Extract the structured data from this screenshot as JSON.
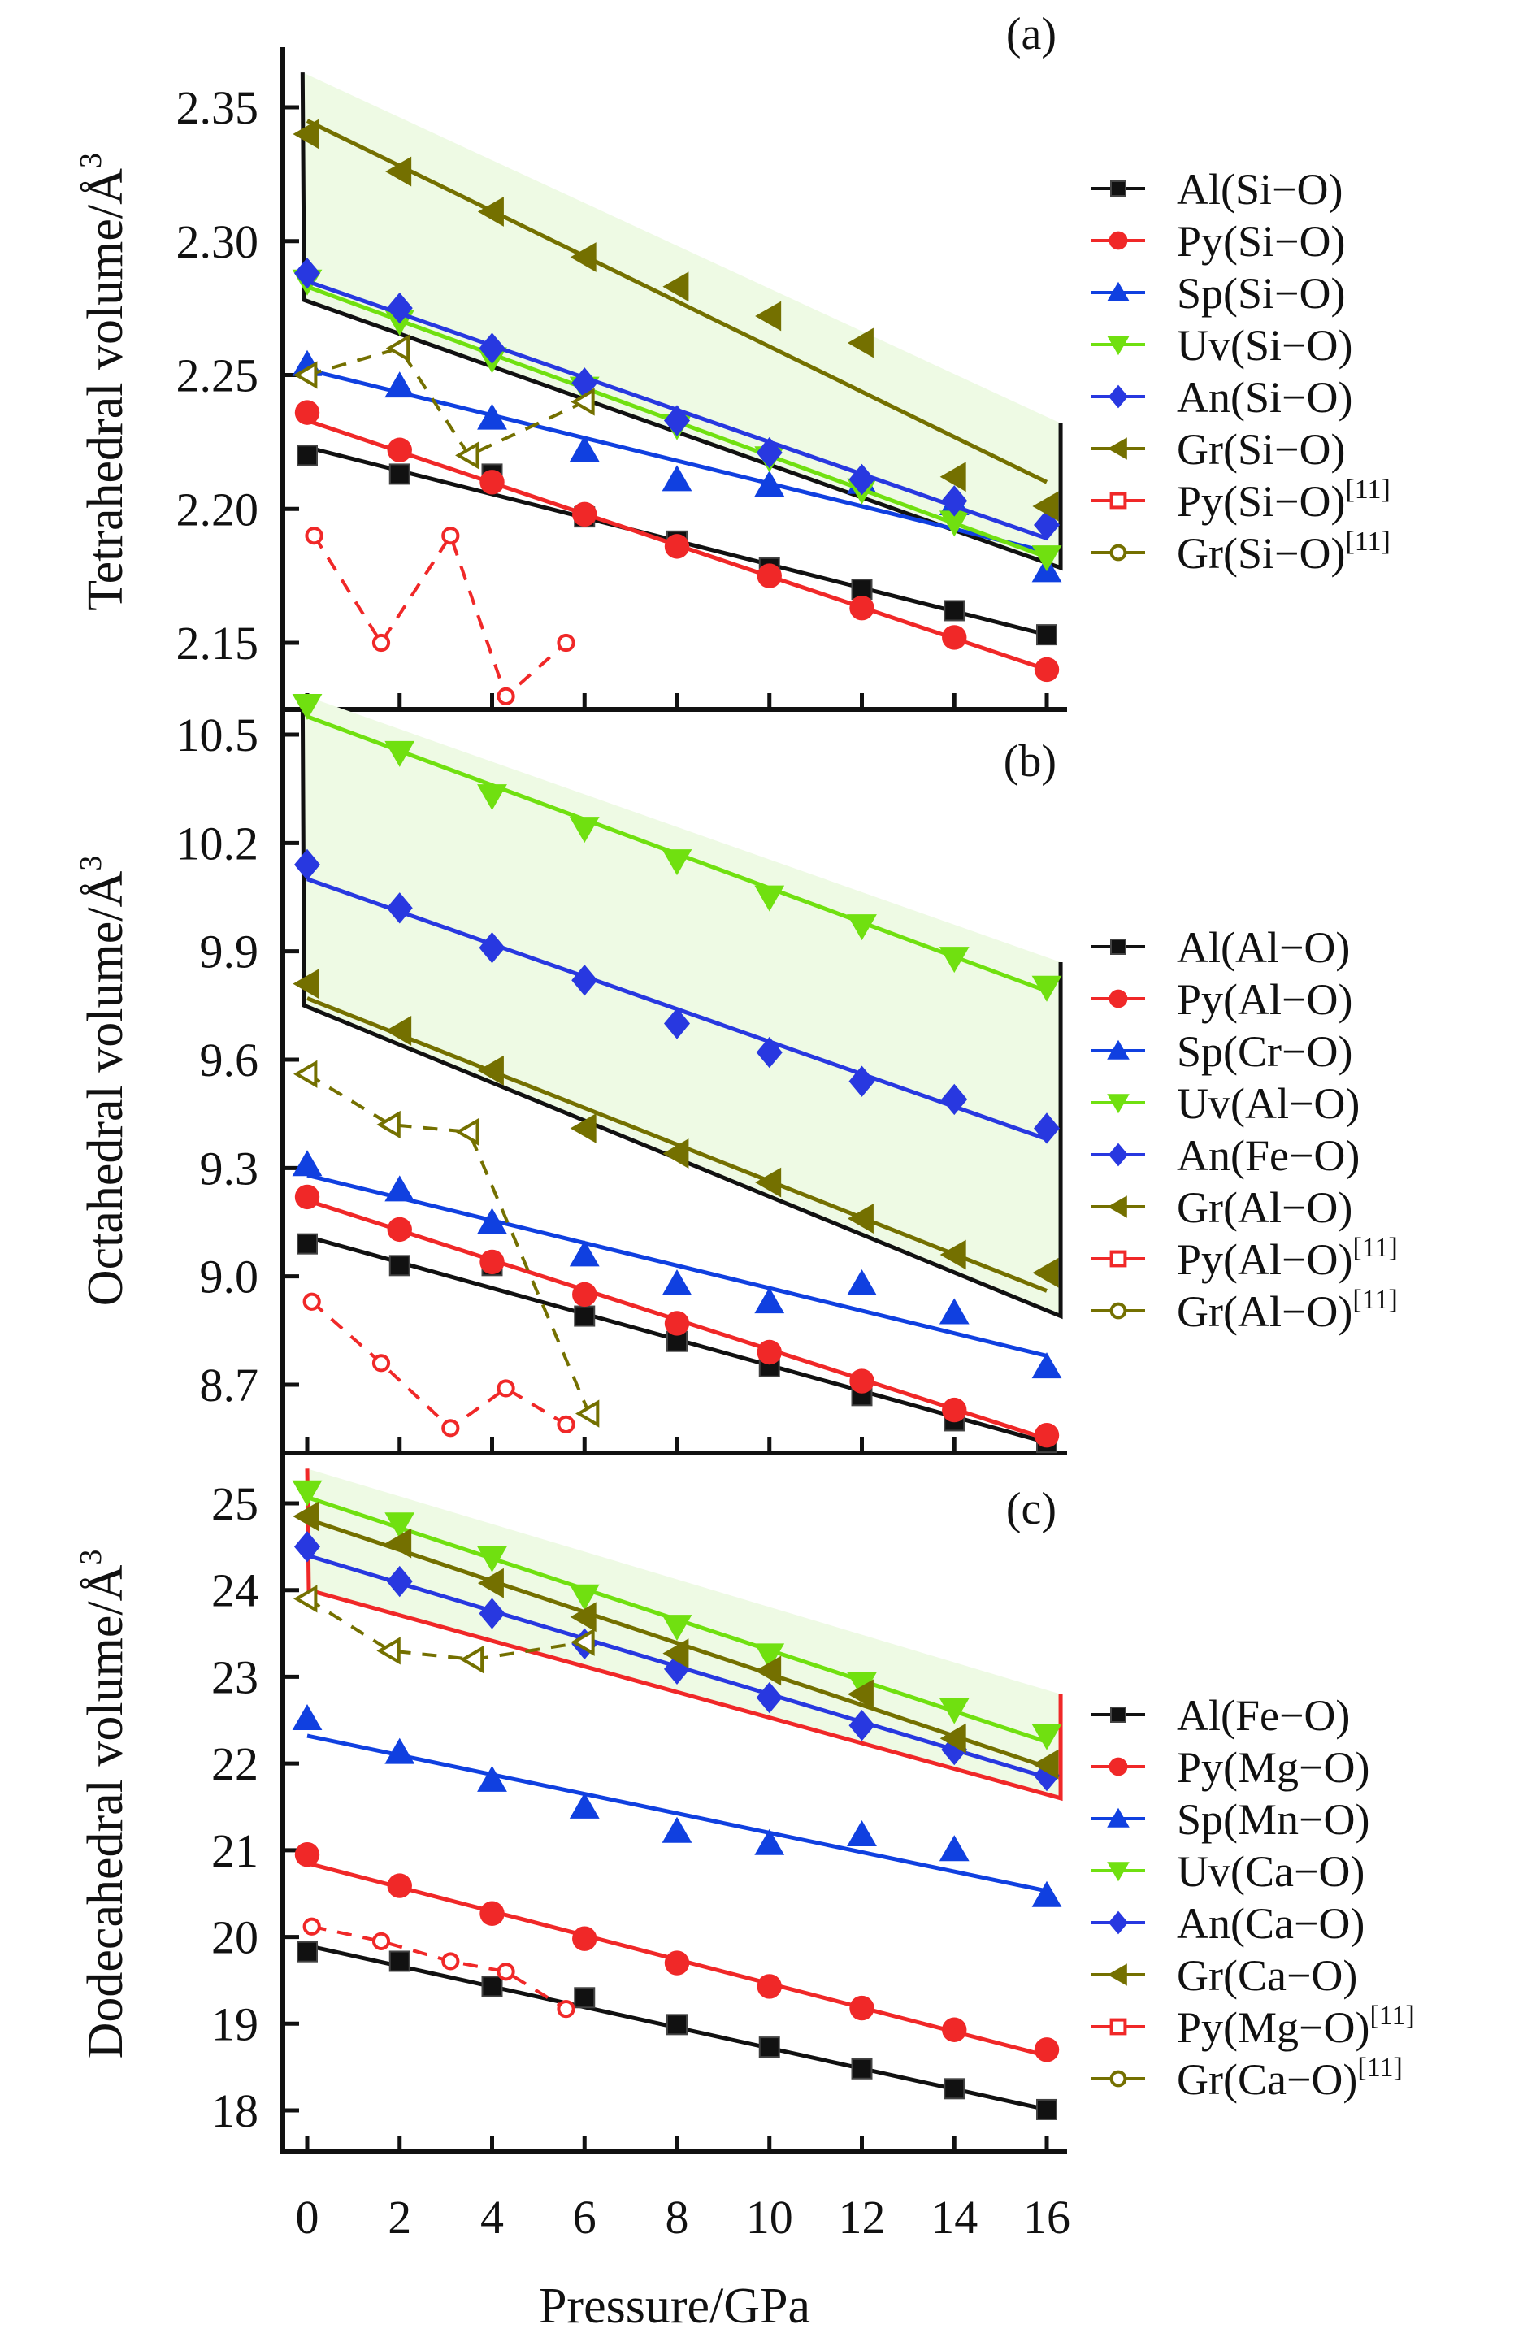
{
  "chart_data": {
    "type": "line",
    "xlabel": "Pressure/GPa",
    "x": [
      0,
      2,
      4,
      6,
      8,
      10,
      12,
      14,
      16
    ],
    "xticks": [
      "0",
      "2",
      "4",
      "6",
      "8",
      "10",
      "12",
      "14",
      "16"
    ],
    "xlim": [
      -0.6,
      16.5
    ],
    "colors": {
      "Al": "#111111",
      "Py": "#f02828",
      "Sp": "#1040e0",
      "Uv": "#70e010",
      "An": "#2838e0",
      "Gr": "#747000",
      "shade": "#eefae4"
    },
    "panels": [
      {
        "tag": "(a)",
        "ylabel": "Tetrahedral volume/Å",
        "ylabel_sup": "3",
        "ylim": [
          2.125,
          2.372
        ],
        "yticks": [
          2.35,
          2.3,
          2.25,
          2.2,
          2.15
        ],
        "ytick_labels": [
          "2.35",
          "2.30",
          "2.25",
          "2.20",
          "2.15"
        ],
        "shade": {
          "x0": -0.1,
          "x1": 16.3,
          "top": [
            2.363,
            2.232
          ],
          "bottom": [
            2.278,
            2.178
          ],
          "edge_color": "#111111"
        },
        "series": [
          {
            "name": "Al(Si−O)",
            "key": "Al",
            "marker": "square",
            "values": [
              2.22,
              2.213,
              2.213,
              2.197,
              2.188,
              2.178,
              2.17,
              2.162,
              2.153
            ],
            "fit": [
              2.223,
              2.153
            ]
          },
          {
            "name": "Py(Si−O)",
            "key": "Py",
            "marker": "circle",
            "values": [
              2.236,
              2.222,
              2.21,
              2.198,
              2.186,
              2.175,
              2.163,
              2.152,
              2.14
            ],
            "fit": [
              2.233,
              2.14
            ]
          },
          {
            "name": "Sp(Si−O)",
            "key": "Sp",
            "marker": "triangle-up",
            "values": [
              2.254,
              2.246,
              2.234,
              2.222,
              2.211,
              2.209,
              2.21,
              2.202,
              2.177
            ],
            "fit": [
              2.252,
              2.184
            ]
          },
          {
            "name": "Uv(Si−O)",
            "key": "Uv",
            "marker": "triangle-down",
            "values": [
              2.285,
              2.27,
              2.256,
              2.245,
              2.231,
              2.219,
              2.207,
              2.195,
              2.182
            ],
            "fit": [
              2.283,
              2.182
            ]
          },
          {
            "name": "An(Si−O)",
            "key": "An",
            "marker": "diamond",
            "values": [
              2.288,
              2.275,
              2.26,
              2.247,
              2.233,
              2.221,
              2.211,
              2.203,
              2.194
            ],
            "fit": [
              2.285,
              2.189
            ]
          },
          {
            "name": "Gr(Si−O)",
            "key": "Gr",
            "marker": "triangle-left",
            "values": [
              2.34,
              2.326,
              2.311,
              2.294,
              2.283,
              2.272,
              2.262,
              2.212,
              2.201
            ],
            "fit": [
              2.345,
              2.21
            ]
          },
          {
            "name": "Py(Si−O)",
            "sup": "[11]",
            "key": "Py",
            "marker": "open-circle",
            "legend_marker": "open-square",
            "dashed": true,
            "x": [
              0.15,
              1.6,
              3.1,
              4.3,
              5.6
            ],
            "values": [
              2.19,
              2.15,
              2.19,
              2.13,
              2.15
            ]
          },
          {
            "name": "Gr(Si−O)",
            "sup": "[11]",
            "key": "Gr",
            "marker": "open-triangle-left",
            "legend_marker": "open-circle",
            "dashed": true,
            "x": [
              0,
              2,
              3.5,
              6
            ],
            "values": [
              2.25,
              2.26,
              2.22,
              2.24
            ]
          }
        ]
      },
      {
        "tag": "(b)",
        "ylabel": "Octahedral volume/Å",
        "ylabel_sup": "3",
        "ylim": [
          8.52,
          10.63
        ],
        "yticks": [
          10.5,
          10.2,
          9.9,
          9.6,
          9.3,
          9.0,
          8.7
        ],
        "ytick_labels": [
          "10.5",
          "10.2",
          "9.9",
          "9.6",
          "9.3",
          "9.0",
          "8.7"
        ],
        "shade": {
          "x0": -0.1,
          "x1": 16.3,
          "top": [
            10.61,
            9.87
          ],
          "bottom": [
            9.75,
            8.89
          ],
          "edge_color": "#111111"
        },
        "series": [
          {
            "name": "Al(Al−O)",
            "key": "Al",
            "marker": "square",
            "values": [
              9.09,
              9.03,
              9.03,
              8.89,
              8.82,
              8.75,
              8.67,
              8.6,
              8.54
            ],
            "fit": [
              9.11,
              8.54
            ]
          },
          {
            "name": "Py(Al−O)",
            "key": "Py",
            "marker": "circle",
            "values": [
              9.22,
              9.13,
              9.04,
              8.95,
              8.87,
              8.79,
              8.71,
              8.63,
              8.56
            ],
            "fit": [
              9.21,
              8.55
            ]
          },
          {
            "name": "Sp(Cr−O)",
            "key": "Sp",
            "marker": "triangle-up",
            "values": [
              9.31,
              9.24,
              9.15,
              9.06,
              8.98,
              8.93,
              8.98,
              8.9,
              8.75
            ],
            "fit": [
              9.28,
              8.78
            ]
          },
          {
            "name": "Uv(Al−O)",
            "key": "Uv",
            "marker": "triangle-down",
            "values": [
              10.58,
              10.45,
              10.33,
              10.24,
              10.15,
              10.05,
              9.97,
              9.88,
              9.8
            ],
            "fit": [
              10.55,
              9.79
            ]
          },
          {
            "name": "An(Fe−O)",
            "key": "An",
            "marker": "diamond",
            "values": [
              10.14,
              10.02,
              9.91,
              9.82,
              9.7,
              9.62,
              9.54,
              9.49,
              9.41
            ],
            "fit": [
              10.1,
              9.38
            ]
          },
          {
            "name": "Gr(Al−O)",
            "key": "Gr",
            "marker": "triangle-left",
            "values": [
              9.81,
              9.68,
              9.57,
              9.41,
              9.34,
              9.26,
              9.16,
              9.06,
              9.01
            ],
            "fit": [
              9.77,
              8.96
            ]
          },
          {
            "name": "Py(Al−O)",
            "sup": "[11]",
            "key": "Py",
            "marker": "open-circle",
            "legend_marker": "open-square",
            "dashed": true,
            "x": [
              0.1,
              1.6,
              3.1,
              4.3,
              5.6
            ],
            "values": [
              8.93,
              8.76,
              8.58,
              8.69,
              8.59
            ]
          },
          {
            "name": "Gr(Al−O)",
            "sup": "[11]",
            "key": "Gr",
            "marker": "open-triangle-left",
            "legend_marker": "open-circle",
            "dashed": true,
            "x": [
              0,
              1.8,
              3.5,
              6.1
            ],
            "values": [
              9.56,
              9.42,
              9.4,
              8.62
            ]
          }
        ]
      },
      {
        "tag": "(c)",
        "ylabel": "Dodecahedral volume/Å",
        "ylabel_sup": "3",
        "ylim": [
          17.5,
          25.55
        ],
        "yticks": [
          25,
          24,
          23,
          22,
          21,
          20,
          19,
          18
        ],
        "ytick_labels": [
          "25",
          "24",
          "23",
          "22",
          "21",
          "20",
          "19",
          "18"
        ],
        "shade": {
          "x0": 0.0,
          "x1": 16.3,
          "top": [
            25.4,
            22.8
          ],
          "bottom": [
            24.0,
            21.6
          ],
          "edge_color": "#f02828"
        },
        "series": [
          {
            "name": "Al(Fe−O)",
            "key": "Al",
            "marker": "square",
            "values": [
              19.83,
              19.72,
              19.43,
              19.3,
              18.99,
              18.73,
              18.48,
              18.25,
              18.01
            ],
            "fit": [
              19.9,
              18.01
            ]
          },
          {
            "name": "Py(Mg−O)",
            "key": "Py",
            "marker": "circle",
            "values": [
              20.95,
              20.59,
              20.27,
              19.98,
              19.7,
              19.43,
              19.18,
              18.93,
              18.7
            ],
            "fit": [
              20.85,
              18.63
            ]
          },
          {
            "name": "Sp(Mn−O)",
            "key": "Sp",
            "marker": "triangle-up",
            "values": [
              22.52,
              22.13,
              21.81,
              21.5,
              21.22,
              21.08,
              21.18,
              21.01,
              20.48
            ],
            "fit": [
              22.32,
              20.53
            ]
          },
          {
            "name": "Uv(Ca−O)",
            "key": "Uv",
            "marker": "triangle-down",
            "values": [
              25.13,
              24.76,
              24.37,
              23.93,
              23.58,
              23.25,
              22.92,
              22.62,
              22.32
            ],
            "fit": [
              25.07,
              22.25
            ]
          },
          {
            "name": "An(Ca−O)",
            "key": "An",
            "marker": "diamond",
            "values": [
              24.5,
              24.1,
              23.73,
              23.38,
              23.09,
              22.76,
              22.44,
              22.16,
              21.86
            ],
            "fit": [
              24.4,
              21.84
            ]
          },
          {
            "name": "Gr(Ca−O)",
            "key": "Gr",
            "marker": "triangle-left",
            "values": [
              24.85,
              24.54,
              24.08,
              23.69,
              23.27,
              23.07,
              22.8,
              22.29,
              21.99
            ],
            "fit": [
              24.82,
              21.96
            ]
          },
          {
            "name": "Py(Mg−O)",
            "sup": "[11]",
            "key": "Py",
            "marker": "open-circle",
            "legend_marker": "open-square",
            "dashed": true,
            "x": [
              0.1,
              1.6,
              3.1,
              4.3,
              5.6
            ],
            "values": [
              20.12,
              19.95,
              19.72,
              19.6,
              19.17
            ]
          },
          {
            "name": "Gr(Ca−O)",
            "sup": "[11]",
            "key": "Gr",
            "marker": "open-triangle-left",
            "legend_marker": "open-circle",
            "dashed": true,
            "x": [
              0,
              1.8,
              3.6,
              6.0
            ],
            "values": [
              23.9,
              23.3,
              23.2,
              23.4
            ]
          }
        ]
      }
    ]
  }
}
